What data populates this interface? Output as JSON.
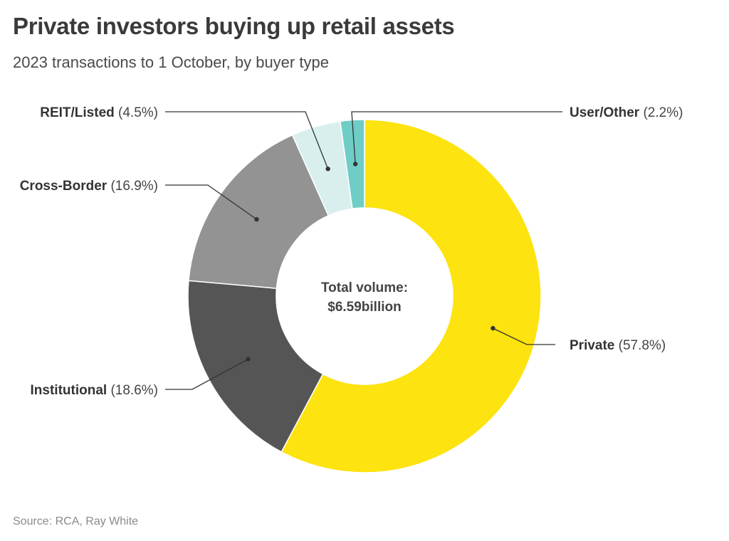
{
  "header": {
    "title": "Private investors buying up retail assets",
    "subtitle": "2023 transactions to 1 October, by buyer type"
  },
  "footer": {
    "source": "Source: RCA, Ray White"
  },
  "chart_data": {
    "type": "pie",
    "donut": true,
    "center_label": [
      "Total volume:",
      "$6.59billion"
    ],
    "slices": [
      {
        "name": "Private",
        "pct_label": "(57.8%)",
        "value": 57.8,
        "color": "#fde30f",
        "side": "right"
      },
      {
        "name": "Institutional",
        "pct_label": "(18.6%)",
        "value": 18.6,
        "color": "#555555",
        "side": "left"
      },
      {
        "name": "Cross-Border",
        "pct_label": "(16.9%)",
        "value": 16.9,
        "color": "#939393",
        "side": "left"
      },
      {
        "name": "REIT/Listed",
        "pct_label": "(4.5%)",
        "value": 4.5,
        "color": "#d8efee",
        "side": "left"
      },
      {
        "name": "User/Other",
        "pct_label": "(2.2%)",
        "value": 2.2,
        "color": "#6fcdc6",
        "side": "right"
      }
    ]
  }
}
